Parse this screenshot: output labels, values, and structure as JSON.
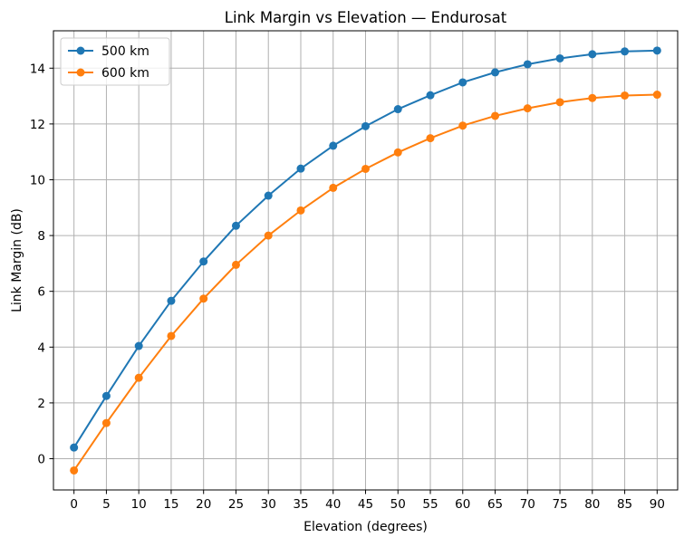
{
  "chart_data": {
    "type": "line",
    "title": "Link Margin vs Elevation — Endurosat",
    "xlabel": "Elevation (degrees)",
    "ylabel": "Link Margin (dB)",
    "x": [
      0,
      5,
      10,
      15,
      20,
      25,
      30,
      35,
      40,
      45,
      50,
      55,
      60,
      65,
      70,
      75,
      80,
      85,
      90
    ],
    "xticks": [
      "0",
      "5",
      "10",
      "15",
      "20",
      "25",
      "30",
      "35",
      "40",
      "45",
      "50",
      "55",
      "60",
      "65",
      "70",
      "75",
      "80",
      "85",
      "90"
    ],
    "yticks": [
      "0",
      "2",
      "4",
      "6",
      "8",
      "10",
      "12",
      "14"
    ],
    "xlim": [
      -3.17,
      93.17
    ],
    "ylim": [
      -1.12,
      15.34
    ],
    "grid": true,
    "legend_position": "upper-left",
    "series": [
      {
        "name": "500 km",
        "color": "#1f77b4",
        "values": [
          0.4,
          2.25,
          4.04,
          5.66,
          7.07,
          8.35,
          9.43,
          10.4,
          11.22,
          11.92,
          12.53,
          13.03,
          13.49,
          13.85,
          14.14,
          14.35,
          14.5,
          14.6,
          14.63
        ]
      },
      {
        "name": "600 km",
        "color": "#ff7f0e",
        "values": [
          -0.42,
          1.28,
          2.9,
          4.4,
          5.74,
          6.95,
          8.0,
          8.9,
          9.71,
          10.39,
          10.98,
          11.49,
          11.94,
          12.29,
          12.56,
          12.78,
          12.93,
          13.02,
          13.05
        ]
      }
    ]
  }
}
